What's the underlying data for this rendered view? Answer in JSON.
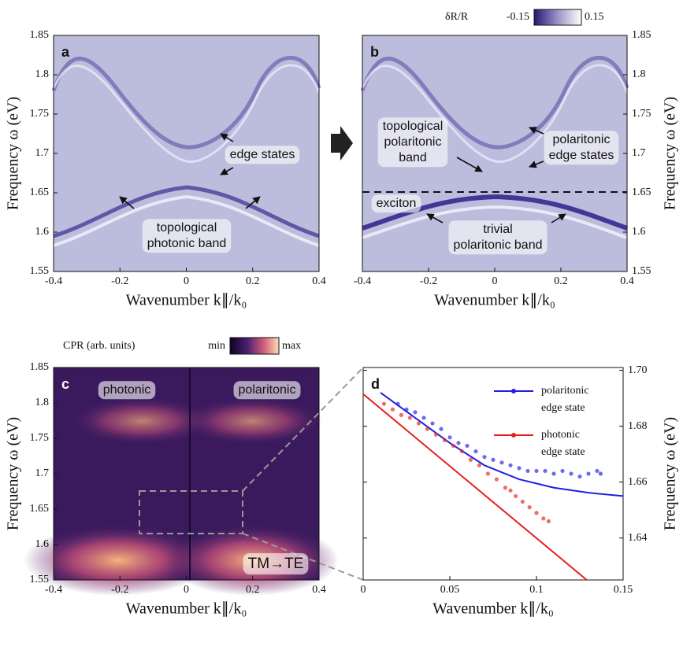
{
  "chart_data": [
    {
      "type": "heatmap",
      "panel": "a",
      "xlabel": "Wavenumber k∥/k₀",
      "ylabel": "Frequency  ω (eV)",
      "xlim": [
        -0.4,
        0.4
      ],
      "xticks": [
        -0.4,
        -0.2,
        0,
        0.2,
        0.4
      ],
      "ylim": [
        1.55,
        1.85
      ],
      "yticks": [
        1.55,
        1.6,
        1.65,
        1.7,
        1.75,
        1.8,
        1.85
      ],
      "annotations": [
        [
          "edge states"
        ],
        [
          "topological",
          "photonic band"
        ]
      ]
    },
    {
      "type": "heatmap",
      "panel": "b",
      "xlabel": "Wavenumber k∥/k₀",
      "ylabel": "Frequency  ω (eV)",
      "xlim": [
        -0.4,
        0.4
      ],
      "xticks": [
        -0.4,
        -0.2,
        0,
        0.2,
        0.4
      ],
      "ylim": [
        1.55,
        1.85
      ],
      "yticks": [
        1.55,
        1.6,
        1.65,
        1.7,
        1.75,
        1.8,
        1.85
      ],
      "colorbar": {
        "label": "δR/R",
        "min": -0.15,
        "max": 0.15
      },
      "annotations": [
        [
          "topological",
          "polaritonic",
          "band"
        ],
        [
          "polaritonic",
          "edge states"
        ],
        [
          "exciton"
        ],
        [
          "trivial",
          "polaritonic band"
        ]
      ]
    },
    {
      "type": "heatmap",
      "panel": "c",
      "xlabel": "Wavenumber k∥/k₀",
      "ylabel": "Frequency  ω (eV)",
      "xlim": [
        -0.4,
        0.4
      ],
      "xticks": [
        -0.4,
        -0.2,
        0,
        0.2,
        0.4
      ],
      "ylim": [
        1.55,
        1.85
      ],
      "yticks": [
        1.55,
        1.6,
        1.65,
        1.7,
        1.75,
        1.8,
        1.85
      ],
      "colorbar": {
        "label": "CPR (arb. units)",
        "min": "min",
        "max": "max"
      },
      "annotations": [
        [
          "photonic"
        ],
        [
          "polaritonic"
        ],
        [
          "TM→TE"
        ]
      ]
    },
    {
      "type": "scatter",
      "panel": "d",
      "xlabel": "Wavenumber k∥/k₀",
      "ylabel": "Frequency  ω (eV)",
      "xlim": [
        0,
        0.15
      ],
      "xticks": [
        0,
        0.05,
        0.1,
        0.15
      ],
      "ylim": [
        1.625,
        1.701
      ],
      "yticks": [
        1.64,
        1.66,
        1.68,
        {
          "value": 1.7,
          "label": "1.70"
        }
      ],
      "series": [
        {
          "name": [
            "polaritonic",
            "edge state"
          ],
          "color": "#1f1fe0",
          "x": [
            0.02,
            0.025,
            0.03,
            0.035,
            0.04,
            0.045,
            0.05,
            0.055,
            0.06,
            0.065,
            0.07,
            0.075,
            0.08,
            0.085,
            0.09,
            0.095,
            0.1,
            0.105,
            0.11,
            0.115,
            0.12,
            0.125,
            0.13,
            0.135,
            0.137
          ],
          "values": [
            1.688,
            1.686,
            1.685,
            1.683,
            1.681,
            1.679,
            1.676,
            1.674,
            1.673,
            1.671,
            1.669,
            1.668,
            1.667,
            1.666,
            1.665,
            1.664,
            1.664,
            1.664,
            1.663,
            1.664,
            1.663,
            1.662,
            1.663,
            1.664,
            1.663
          ],
          "line": {
            "x": [
              0.01,
              0.03,
              0.05,
              0.07,
              0.09,
              0.11,
              0.13,
              0.15
            ],
            "values": [
              1.692,
              1.683,
              1.674,
              1.666,
              1.661,
              1.658,
              1.6562,
              1.655
            ]
          }
        },
        {
          "name": [
            "photonic",
            "edge state"
          ],
          "color": "#e81e1e",
          "x": [
            0.012,
            0.017,
            0.022,
            0.027,
            0.032,
            0.037,
            0.042,
            0.047,
            0.052,
            0.057,
            0.062,
            0.067,
            0.072,
            0.077,
            0.082,
            0.085,
            0.088,
            0.092,
            0.096,
            0.1,
            0.104,
            0.107
          ],
          "values": [
            1.688,
            1.686,
            1.684,
            1.683,
            1.681,
            1.679,
            1.677,
            1.675,
            1.673,
            1.671,
            1.668,
            1.666,
            1.663,
            1.661,
            1.658,
            1.657,
            1.655,
            1.653,
            1.651,
            1.649,
            1.647,
            1.646
          ],
          "line": {
            "x": [
              0,
              0.129
            ],
            "values": [
              1.6915,
              1.625
            ]
          }
        }
      ]
    }
  ]
}
